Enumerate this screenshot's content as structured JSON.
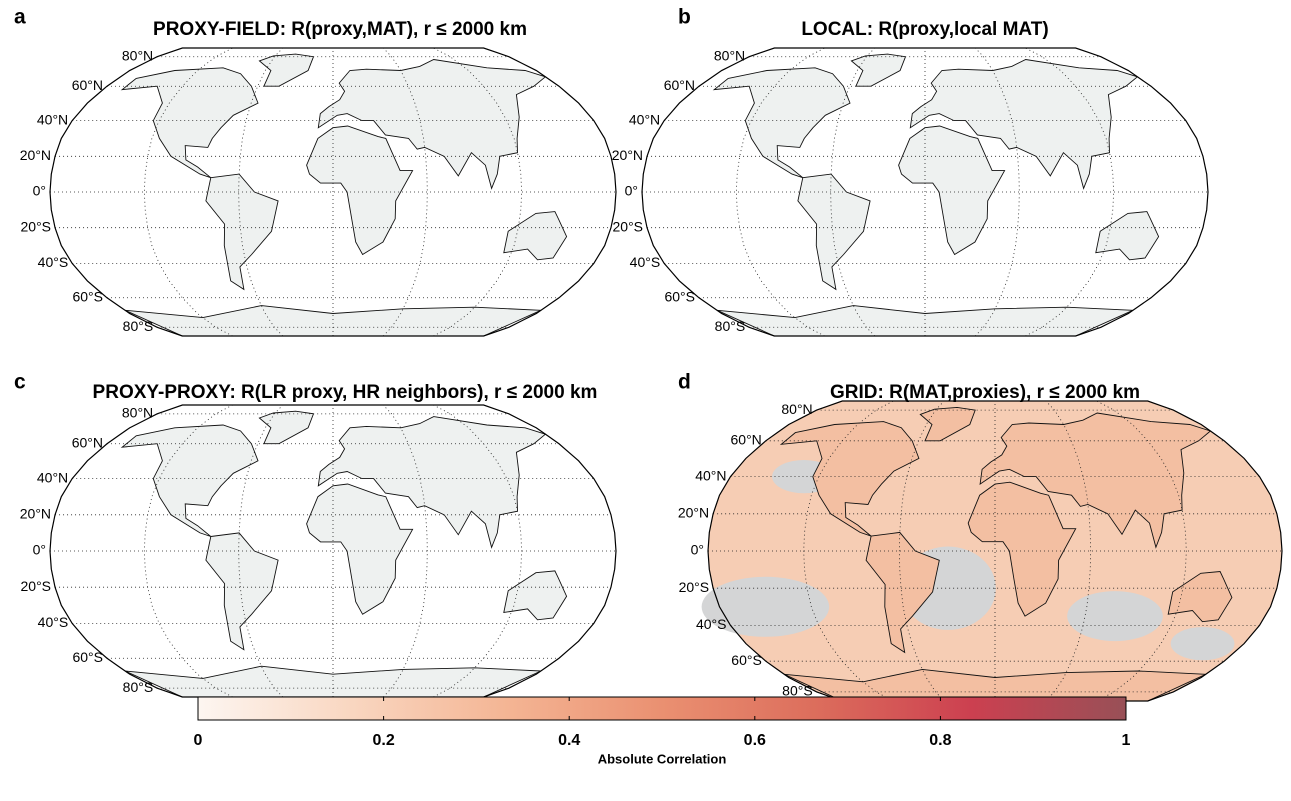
{
  "panels": [
    {
      "letter": "a",
      "title": "PROXY-FIELD: R(proxy,MAT), r ≤  2000 km",
      "lat_labels": [
        "80°N",
        "60°N",
        "40°N",
        "20°N",
        "0°",
        "20°S",
        "40°S",
        "60°S",
        "80°S"
      ]
    },
    {
      "letter": "b",
      "title": "LOCAL: R(proxy,local MAT)",
      "lat_labels": [
        "80°N",
        "60°N",
        "40°N",
        "20°N",
        "0°",
        "20°S",
        "40°S",
        "60°S",
        "80°S"
      ]
    },
    {
      "letter": "c",
      "title": "PROXY-PROXY: R(LR proxy, HR neighbors), r ≤ 2000 km",
      "lat_labels": [
        "80°N",
        "60°N",
        "40°N",
        "20°N",
        "0°",
        "20°S",
        "40°S",
        "60°S",
        "80°S"
      ]
    },
    {
      "letter": "d",
      "title": "GRID: R(MAT,proxies), r ≤  2000 km",
      "lat_labels": [
        "80°N",
        "60°N",
        "40°N",
        "20°N",
        "0°",
        "20°S",
        "40°S",
        "60°S",
        "80°S"
      ]
    }
  ],
  "colorbar": {
    "label": "Absolute Correlation",
    "lim": [
      0,
      1
    ],
    "ticks": [
      0,
      0.2,
      0.4,
      0.6,
      0.8,
      1
    ],
    "colors": [
      "#fdf6f1",
      "#f9d6c0",
      "#f4b594",
      "#ea9071",
      "#dc6d5c",
      "#cc4050",
      "#985057"
    ]
  }
}
